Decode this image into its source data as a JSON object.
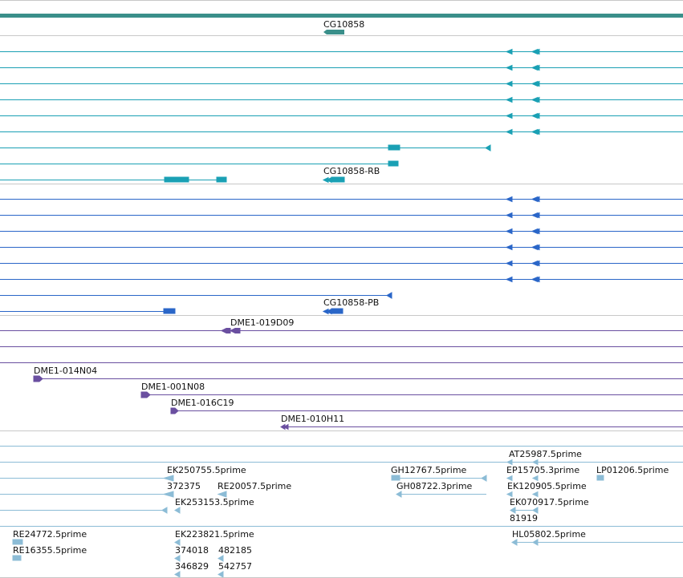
{
  "colors": {
    "gene": "#3a8f8a",
    "transcript_teal": "#1aa0b4",
    "transcript_blue": "#2a66c8",
    "clone_purple": "#6a4fa0",
    "est_lightblue": "#8cbcd6",
    "divider": "#c8c8c8"
  },
  "labels": {
    "gene": "CG10858",
    "transcript_rb": "CG10858-RB",
    "transcript_pb": "CG10858-PB",
    "clones": [
      "DME1-019D09",
      "DME1-014N04",
      "DME1-001N08",
      "DME1-016C19",
      "DME1-010H11"
    ],
    "ests": [
      "AT25987.5prime",
      "EK250755.5prime",
      "GH12767.5prime",
      "EP15705.3prime",
      "LP01206.5prime",
      "372375",
      "RE20057.5prime",
      "GH08722.3prime",
      "EK120905.5prime",
      "EK253153.5prime",
      "EK070917.5prime",
      "81919",
      "RE24772.5prime",
      "EK223821.5prime",
      "HL05802.5prime",
      "374018",
      "482185",
      "RE16355.5prime",
      "346829",
      "542757"
    ]
  }
}
